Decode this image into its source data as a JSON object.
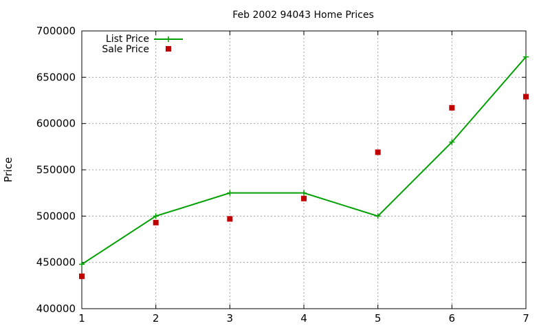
{
  "chart_data": {
    "type": "line",
    "title": "Feb 2002 94043 Home Prices",
    "xlabel": "",
    "ylabel": "Price",
    "x": [
      1,
      2,
      3,
      4,
      5,
      6,
      7
    ],
    "xlim": [
      1,
      7
    ],
    "ylim": [
      400000,
      700000
    ],
    "xticks": [
      "1",
      "2",
      "3",
      "4",
      "5",
      "6",
      "7"
    ],
    "yticks": [
      "400000",
      "450000",
      "500000",
      "550000",
      "600000",
      "650000",
      "700000"
    ],
    "grid": true,
    "legend_position": "top-left",
    "series": [
      {
        "name": "List Price",
        "style": "line-with-plus-markers",
        "color": "#00a000",
        "values": [
          448000,
          500000,
          525000,
          525000,
          500000,
          580000,
          672000
        ]
      },
      {
        "name": "Sale Price",
        "style": "square-markers",
        "color": "#c00000",
        "values": [
          435000,
          493000,
          497000,
          519000,
          569000,
          617000,
          629000
        ]
      }
    ]
  }
}
